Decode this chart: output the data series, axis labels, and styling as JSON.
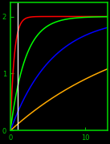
{
  "background_color": "#000000",
  "axis_color": "#00cc00",
  "tick_color": "#00cc00",
  "curves": [
    {
      "color": "#ff0000",
      "k": 2.0
    },
    {
      "color": "#00ff00",
      "k": 0.5
    },
    {
      "color": "#0000ff",
      "k": 0.18
    },
    {
      "color": "#ffaa00",
      "k": 0.06
    }
  ],
  "vline_x": 1.0,
  "vline_color": "#ffffff",
  "xmin": 0,
  "xmax": 13.0,
  "ymin": 0,
  "ymax": 2.25,
  "yticks": [
    0,
    1,
    2
  ],
  "xticks": [
    0,
    10
  ],
  "tick_fontsize": 6,
  "linewidth": 1.1
}
